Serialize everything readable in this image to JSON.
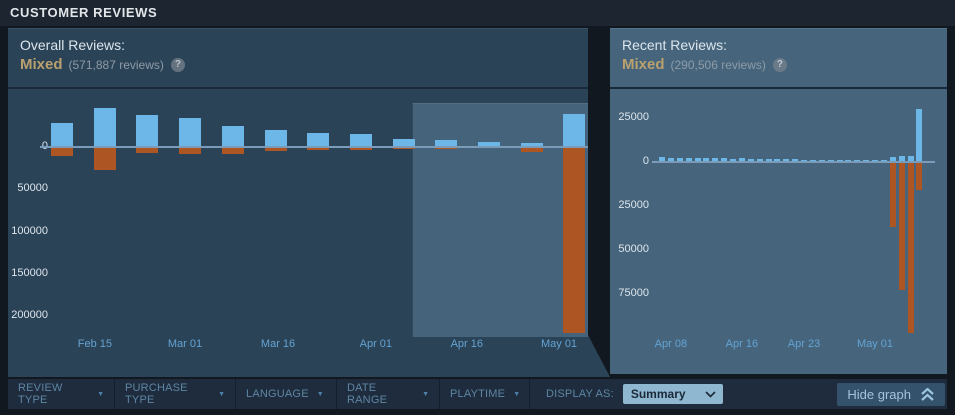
{
  "title_bar": {
    "title": "CUSTOMER REVIEWS"
  },
  "overall": {
    "title": "Overall Reviews:",
    "rating": "Mixed",
    "count": "(571,887 reviews)"
  },
  "recent": {
    "title": "Recent Reviews:",
    "rating": "Mixed",
    "count": "(290,506 reviews)"
  },
  "icons": {
    "help": "?",
    "caret_down": "▼"
  },
  "filter_bar": {
    "filters": [
      {
        "label": "REVIEW TYPE"
      },
      {
        "label": "PURCHASE TYPE"
      },
      {
        "label": "LANGUAGE"
      },
      {
        "label": "DATE RANGE"
      },
      {
        "label": "PLAYTIME"
      }
    ],
    "display_as_label": "DISPLAY AS:",
    "display_as_value": "Summary",
    "hide_graph_label": "Hide graph"
  },
  "colors": {
    "positive_bar": "#6cb7e8",
    "negative_bar": "#ad5523",
    "zero_line": "#7b9cb8",
    "rating_mixed": "#b9a06e",
    "panel_left_bg": "#2b4357",
    "panel_right_bg": "#46657d",
    "date_label": "#64a3d3"
  },
  "chart_data": [
    {
      "type": "bar",
      "title": "Overall Reviews",
      "granularity": "weekly",
      "grid": false,
      "legend": "none",
      "ylim": [
        -274000,
        68500
      ],
      "series": [
        {
          "name": "positive",
          "values": [
            28000,
            46000,
            38000,
            34000,
            25000,
            20000,
            16500,
            15000,
            9500,
            8000,
            6000,
            5000,
            39000
          ]
        },
        {
          "name": "negative",
          "values": [
            10500,
            27500,
            7000,
            8000,
            8000,
            4500,
            3500,
            3000,
            2500,
            2000,
            1500,
            6000,
            220000
          ]
        }
      ],
      "x_ticks": [
        {
          "label": "Feb 15",
          "index": 0.77
        },
        {
          "label": "Mar 01",
          "index": 2.88
        },
        {
          "label": "Mar 16",
          "index": 5.06
        },
        {
          "label": "Apr 01",
          "index": 7.35
        },
        {
          "label": "Apr 16",
          "index": 9.48
        },
        {
          "label": "May 01",
          "index": 11.64
        }
      ],
      "y_ticks": [
        {
          "label": "0",
          "v": 0
        },
        {
          "label": "50000",
          "v": -50000
        },
        {
          "label": "100000",
          "v": -100000
        },
        {
          "label": "150000",
          "v": -150000
        },
        {
          "label": "200000",
          "v": -200000
        }
      ],
      "selection": {
        "from_index": 8.2,
        "to_index": 12.5,
        "note": "recent-period highlight"
      }
    },
    {
      "type": "bar",
      "title": "Recent Reviews",
      "granularity": "daily",
      "grid": false,
      "legend": "none",
      "ylim": [
        -123000,
        41500
      ],
      "series": [
        {
          "name": "positive",
          "values": [
            2600,
            2400,
            2500,
            2300,
            2500,
            2200,
            2000,
            2100,
            1900,
            2000,
            1800,
            1700,
            1800,
            1600,
            1500,
            1500,
            1400,
            1400,
            1300,
            1200,
            1200,
            1100,
            1000,
            1000,
            950,
            900,
            3000,
            3500,
            3500,
            30000
          ]
        },
        {
          "name": "negative",
          "values": [
            700,
            600,
            650,
            600,
            550,
            600,
            500,
            550,
            500,
            500,
            450,
            500,
            450,
            400,
            450,
            400,
            400,
            350,
            400,
            350,
            300,
            350,
            300,
            300,
            700,
            800,
            37000,
            73000,
            97000,
            16000
          ]
        }
      ],
      "x_ticks": [
        {
          "label": "Apr 08",
          "index": 1
        },
        {
          "label": "Apr 16",
          "index": 9
        },
        {
          "label": "Apr 23",
          "index": 16
        },
        {
          "label": "May 01",
          "index": 24
        }
      ],
      "y_ticks": [
        {
          "label": "25000",
          "v": 25000
        },
        {
          "label": "0",
          "v": 0
        },
        {
          "label": "25000",
          "v": -25000
        },
        {
          "label": "50000",
          "v": -50000
        },
        {
          "label": "75000",
          "v": -75000
        }
      ]
    }
  ]
}
